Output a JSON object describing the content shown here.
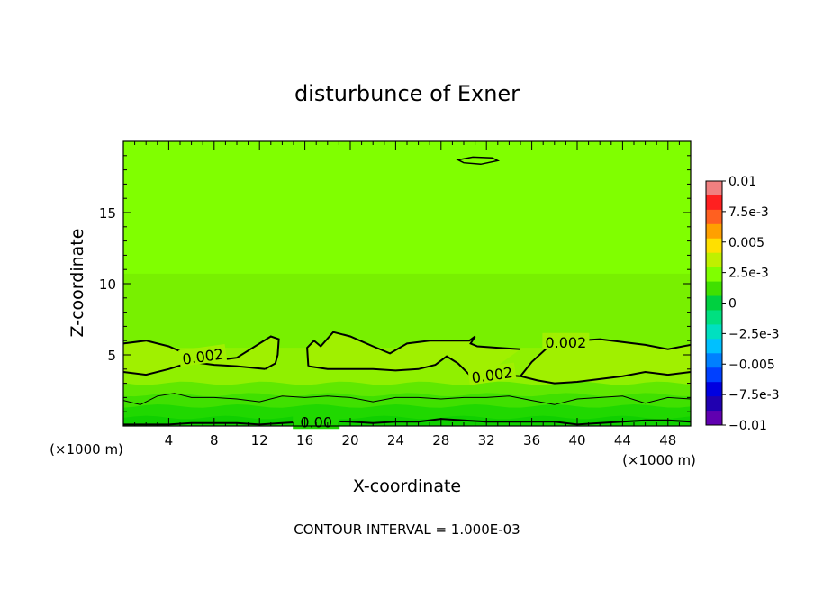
{
  "chart_data": {
    "type": "heatmap",
    "title": "disturbunce of Exner",
    "xlabel": "X-coordinate",
    "ylabel": "Z-coordinate",
    "x_unit": "(×1000 m)",
    "y_unit": "(×1000 m)",
    "xlim": [
      0,
      50
    ],
    "ylim": [
      0,
      20
    ],
    "x_ticks": [
      4,
      8,
      12,
      16,
      20,
      24,
      28,
      32,
      36,
      40,
      44,
      48
    ],
    "y_ticks": [
      5,
      10,
      15
    ],
    "footer": "CONTOUR INTERVAL = 1.000E-03",
    "colorbar": {
      "labels": [
        "0.01",
        "7.5e-3",
        "0.005",
        "2.5e-3",
        "0",
        "−2.5e-3",
        "−0.005",
        "−7.5e-3",
        "−0.01"
      ],
      "min": -0.01,
      "max": 0.01,
      "colors": [
        "#f08080",
        "#ff2020",
        "#ff6020",
        "#ffa000",
        "#ffe000",
        "#c0f000",
        "#80ff00",
        "#40e000",
        "#00d040",
        "#00e080",
        "#00e0c0",
        "#00c0ff",
        "#0080ff",
        "#0040ff",
        "#0000e0",
        "#2000b0",
        "#6000b0"
      ]
    },
    "contour_labels": [
      {
        "text": "0.002",
        "x": 7,
        "z": 4.9,
        "angle": -8
      },
      {
        "text": "0.002",
        "x": 39,
        "z": 5.9,
        "angle": 0
      },
      {
        "text": "0.002",
        "x": 32.5,
        "z": 3.6,
        "angle": -8
      },
      {
        "text": "0.00",
        "x": 17,
        "z": 0.3,
        "angle": 0
      }
    ],
    "fill_bands": [
      {
        "z_top": 20,
        "level": 0.0005,
        "color": "#80ff00"
      },
      {
        "z_top": 10.7,
        "level": 0.0015,
        "color": "#78f000"
      },
      {
        "z_top": 5.5,
        "level": 0.0022,
        "color": "#90f000"
      },
      {
        "z_top": 3.0,
        "level": 0.0015,
        "color": "#60e800"
      },
      {
        "z_top": 2.2,
        "level": 0.0005,
        "color": "#40e000"
      },
      {
        "z_top": 1.4,
        "level": -0.0005,
        "color": "#20d800"
      },
      {
        "z_top": 0.6,
        "level": -0.0015,
        "color": "#10d000"
      }
    ],
    "contour_0002_upper": [
      [
        0,
        5.8
      ],
      [
        2,
        6.0
      ],
      [
        4,
        5.6
      ],
      [
        6,
        4.9
      ],
      [
        8,
        4.6
      ],
      [
        10,
        4.8
      ],
      [
        12,
        5.8
      ],
      [
        13,
        6.3
      ],
      [
        13.7,
        6.1
      ],
      [
        13.6,
        5.0
      ],
      [
        13.4,
        4.4
      ],
      [
        12.5,
        4.0
      ]
    ],
    "contour_0002_lower": [
      [
        12.5,
        4.0
      ],
      [
        10,
        4.2
      ],
      [
        8,
        4.3
      ],
      [
        6,
        4.5
      ],
      [
        4,
        4.0
      ],
      [
        2,
        3.6
      ],
      [
        0,
        3.8
      ]
    ],
    "contour_0002_mid": [
      [
        16.3,
        4.2
      ],
      [
        16.2,
        5.5
      ],
      [
        16.8,
        6.0
      ],
      [
        17.4,
        5.6
      ],
      [
        18.5,
        6.6
      ],
      [
        20,
        6.3
      ],
      [
        22,
        5.6
      ],
      [
        23.5,
        5.1
      ],
      [
        25,
        5.8
      ],
      [
        27,
        6.0
      ],
      [
        29,
        6.0
      ],
      [
        30.5,
        6.0
      ],
      [
        31,
        6.3
      ],
      [
        30.6,
        5.8
      ],
      [
        31.2,
        5.6
      ],
      [
        33,
        5.5
      ],
      [
        35,
        5.4
      ]
    ],
    "contour_0002_mid_low": [
      [
        16.3,
        4.2
      ],
      [
        18,
        4.0
      ],
      [
        20,
        4.0
      ],
      [
        22,
        4.0
      ],
      [
        24,
        3.9
      ],
      [
        26,
        4.0
      ],
      [
        27.5,
        4.3
      ],
      [
        28.5,
        4.9
      ],
      [
        29.5,
        4.4
      ],
      [
        30.5,
        3.6
      ],
      [
        31.5,
        3.4
      ]
    ],
    "contour_0002_right": [
      [
        35,
        3.5
      ],
      [
        36,
        4.5
      ],
      [
        37.5,
        5.6
      ],
      [
        40,
        6.0
      ],
      [
        42,
        6.1
      ],
      [
        44,
        5.9
      ],
      [
        46,
        5.7
      ],
      [
        48,
        5.4
      ],
      [
        50,
        5.7
      ]
    ],
    "contour_0002_right_low": [
      [
        35,
        3.5
      ],
      [
        36.5,
        3.2
      ],
      [
        38,
        3.0
      ],
      [
        40,
        3.1
      ],
      [
        42,
        3.3
      ],
      [
        44,
        3.5
      ],
      [
        46,
        3.8
      ],
      [
        48,
        3.6
      ],
      [
        50,
        3.8
      ]
    ],
    "contour_0001": [
      [
        0,
        1.8
      ],
      [
        1.5,
        1.5
      ],
      [
        3,
        2.1
      ],
      [
        4.5,
        2.3
      ],
      [
        6,
        2.0
      ],
      [
        8,
        2.0
      ],
      [
        10,
        1.9
      ],
      [
        12,
        1.7
      ],
      [
        14,
        2.1
      ],
      [
        16,
        2.0
      ],
      [
        18,
        2.1
      ],
      [
        20,
        2.0
      ],
      [
        22,
        1.7
      ],
      [
        24,
        2.0
      ],
      [
        26,
        2.0
      ],
      [
        28,
        1.9
      ],
      [
        30,
        2.0
      ],
      [
        32,
        2.0
      ],
      [
        34,
        2.1
      ],
      [
        36,
        1.8
      ],
      [
        38,
        1.5
      ],
      [
        40,
        1.9
      ],
      [
        42,
        2.0
      ],
      [
        44,
        2.1
      ],
      [
        46,
        1.6
      ],
      [
        48,
        2.0
      ],
      [
        50,
        1.9
      ]
    ],
    "contour_0000": [
      [
        0,
        0.1
      ],
      [
        2,
        0.1
      ],
      [
        4,
        0.1
      ],
      [
        6,
        0.2
      ],
      [
        8,
        0.2
      ],
      [
        10,
        0.2
      ],
      [
        12,
        0.1
      ],
      [
        14,
        0.2
      ],
      [
        16,
        0.3
      ],
      [
        18,
        0.35
      ],
      [
        20,
        0.3
      ],
      [
        22,
        0.2
      ],
      [
        24,
        0.3
      ],
      [
        26,
        0.3
      ],
      [
        28,
        0.5
      ],
      [
        30,
        0.4
      ],
      [
        32,
        0.3
      ],
      [
        34,
        0.3
      ],
      [
        36,
        0.3
      ],
      [
        38,
        0.3
      ],
      [
        40,
        0.1
      ],
      [
        42,
        0.2
      ],
      [
        44,
        0.3
      ],
      [
        46,
        0.4
      ],
      [
        48,
        0.4
      ],
      [
        50,
        0.3
      ]
    ],
    "small_contour": [
      [
        29.5,
        18.7
      ],
      [
        30.8,
        18.9
      ],
      [
        32.5,
        18.85
      ],
      [
        33,
        18.65
      ],
      [
        31.5,
        18.4
      ],
      [
        30,
        18.5
      ],
      [
        29.5,
        18.7
      ]
    ]
  }
}
